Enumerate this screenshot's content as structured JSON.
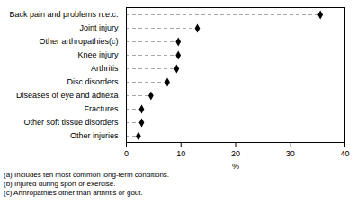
{
  "chart_data": {
    "type": "dot",
    "categories": [
      "Back pain and problems n.e.c.",
      "Joint injury",
      "Other arthropathies(c)",
      "Knee injury",
      "Arthritis",
      "Disc disorders",
      "Diseases of eye and adnexa",
      "Fractures",
      "Other soft tissue disorders",
      "Other injuries"
    ],
    "values": [
      35.5,
      13.0,
      9.5,
      9.5,
      9.2,
      7.5,
      4.5,
      2.8,
      2.8,
      2.2
    ],
    "xlabel": "%",
    "xlim": [
      0,
      40
    ],
    "xticks": [
      0,
      10,
      20,
      30,
      40
    ],
    "color": "#000000",
    "marker": "diamond",
    "line_style": "dashed",
    "orientation": "horizontal",
    "grid": false,
    "annotations": [
      "(a) Includes ten most common long-term conditions.",
      "(b) Injured during sport or exercise.",
      "(c) Arthropathies other than arthritis or gout."
    ]
  }
}
